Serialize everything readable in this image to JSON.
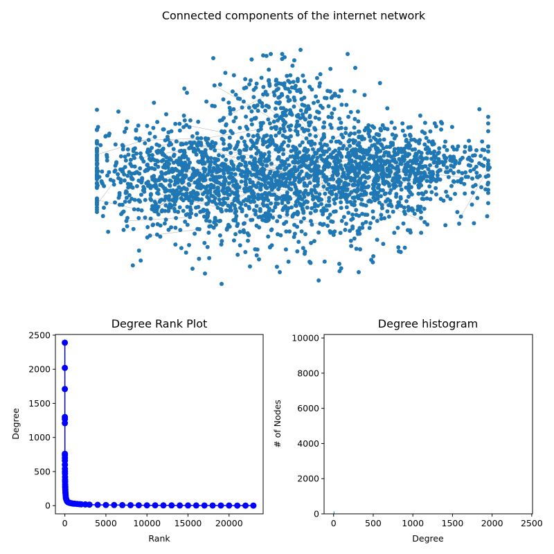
{
  "network_panel": {
    "title": "Connected components of the internet network",
    "node_color": "#1f77b4",
    "edge_color": "#444444"
  },
  "chart_data": [
    {
      "type": "line",
      "title": "Degree Rank Plot",
      "xlabel": "Rank",
      "ylabel": "Degree",
      "xlim": [
        -1150,
        24150
      ],
      "ylim": [
        -120,
        2510
      ],
      "xticks": [
        0,
        5000,
        10000,
        15000,
        20000
      ],
      "yticks": [
        0,
        500,
        1000,
        1500,
        2000,
        2500
      ],
      "grid": false,
      "color": "#0000ff",
      "marker": "o",
      "series": [
        {
          "x": [
            0,
            1,
            2,
            3,
            4,
            5,
            6,
            7,
            8,
            10,
            12,
            15,
            18,
            20,
            25,
            30,
            35,
            40,
            45,
            50,
            60,
            70,
            80,
            100,
            120,
            150,
            200,
            250,
            300,
            400,
            500,
            600,
            800,
            1000,
            1200,
            1500,
            1800,
            2000,
            2500,
            3000,
            4000,
            5000,
            6000,
            7000,
            8000,
            9000,
            10000,
            11000,
            12000,
            13000,
            14000,
            15000,
            16000,
            17000,
            18000,
            19000,
            20000,
            21000,
            22000,
            22960
          ],
          "y": [
            2390,
            2020,
            1710,
            1300,
            1270,
            1210,
            760,
            740,
            700,
            660,
            600,
            540,
            500,
            470,
            420,
            380,
            350,
            310,
            280,
            260,
            230,
            200,
            180,
            150,
            120,
            100,
            85,
            70,
            60,
            50,
            45,
            40,
            35,
            30,
            28,
            25,
            22,
            20,
            18,
            15,
            12,
            10,
            9,
            8,
            7,
            6,
            5,
            5,
            4,
            4,
            3,
            3,
            3,
            2,
            2,
            2,
            2,
            1,
            1,
            1
          ]
        }
      ]
    },
    {
      "type": "bar",
      "title": "Degree histogram",
      "xlabel": "Degree",
      "ylabel": "# of Nodes",
      "xlim": [
        -120,
        2510
      ],
      "ylim": [
        0,
        10200
      ],
      "xticks": [
        0,
        500,
        1000,
        1500,
        2000,
        2500
      ],
      "yticks": [
        0,
        2000,
        4000,
        6000,
        8000,
        10000
      ],
      "grid": false,
      "color": "#1f77b4",
      "bars": [
        {
          "x": 1,
          "value": 150
        },
        {
          "x": 2,
          "value": 110
        },
        {
          "x": 3,
          "value": 70
        },
        {
          "x": 4,
          "value": 40
        }
      ]
    }
  ]
}
